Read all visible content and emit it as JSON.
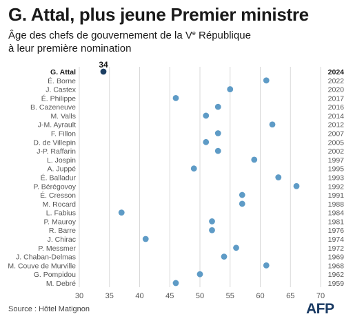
{
  "header": {
    "title": "G. Attal, plus jeune Premier ministre",
    "subtitle_part1": "Âge des chefs de gouvernement de la V",
    "subtitle_sup": "e",
    "subtitle_part2": " République",
    "subtitle_line2": "à leur première nomination"
  },
  "footer": {
    "source": "Source : Hôtel Matignon",
    "logo": "AFP"
  },
  "colors": {
    "dot": "#5e9bc6",
    "highlight_dot": "#1c3f63",
    "label": "#555555",
    "highlight_label": "#1a1a1a",
    "grid": "#d9d9d9"
  },
  "chart_data": {
    "type": "scatter",
    "title": "G. Attal, plus jeune Premier ministre",
    "subtitle": "Âge des chefs de gouvernement de la Ve République à leur première nomination",
    "xlim": [
      30,
      70
    ],
    "xticks": [
      30,
      35,
      40,
      45,
      50,
      55,
      60,
      65,
      70
    ],
    "grid": "vertical",
    "highlight_value_label": "34",
    "points": [
      {
        "name": "G. Attal",
        "year": "2024",
        "age": 34,
        "highlight": true
      },
      {
        "name": "É. Borne",
        "year": "2022",
        "age": 61
      },
      {
        "name": "J. Castex",
        "year": "2020",
        "age": 55
      },
      {
        "name": "É. Philippe",
        "year": "2017",
        "age": 46
      },
      {
        "name": "B. Cazeneuve",
        "year": "2016",
        "age": 53
      },
      {
        "name": "M. Valls",
        "year": "2014",
        "age": 51
      },
      {
        "name": "J-M. Ayrault",
        "year": "2012",
        "age": 62
      },
      {
        "name": "F. Fillon",
        "year": "2007",
        "age": 53
      },
      {
        "name": "D. de Villepin",
        "year": "2005",
        "age": 51
      },
      {
        "name": "J-P. Raffarin",
        "year": "2002",
        "age": 53
      },
      {
        "name": "L. Jospin",
        "year": "1997",
        "age": 59
      },
      {
        "name": "A. Juppé",
        "year": "1995",
        "age": 49
      },
      {
        "name": "É. Balladur",
        "year": "1993",
        "age": 63
      },
      {
        "name": "P. Bérégovoy",
        "year": "1992",
        "age": 66
      },
      {
        "name": "É. Cresson",
        "year": "1991",
        "age": 57
      },
      {
        "name": "M. Rocard",
        "year": "1988",
        "age": 57
      },
      {
        "name": "L. Fabius",
        "year": "1984",
        "age": 37
      },
      {
        "name": "P. Mauroy",
        "year": "1981",
        "age": 52
      },
      {
        "name": "R. Barre",
        "year": "1976",
        "age": 52
      },
      {
        "name": "J. Chirac",
        "year": "1974",
        "age": 41
      },
      {
        "name": "P. Messmer",
        "year": "1972",
        "age": 56
      },
      {
        "name": "J. Chaban-Delmas",
        "year": "1969",
        "age": 54
      },
      {
        "name": "M. Couve de Murville",
        "year": "1968",
        "age": 61
      },
      {
        "name": "G. Pompidou",
        "year": "1962",
        "age": 50
      },
      {
        "name": "M. Debré",
        "year": "1959",
        "age": 46
      }
    ]
  }
}
